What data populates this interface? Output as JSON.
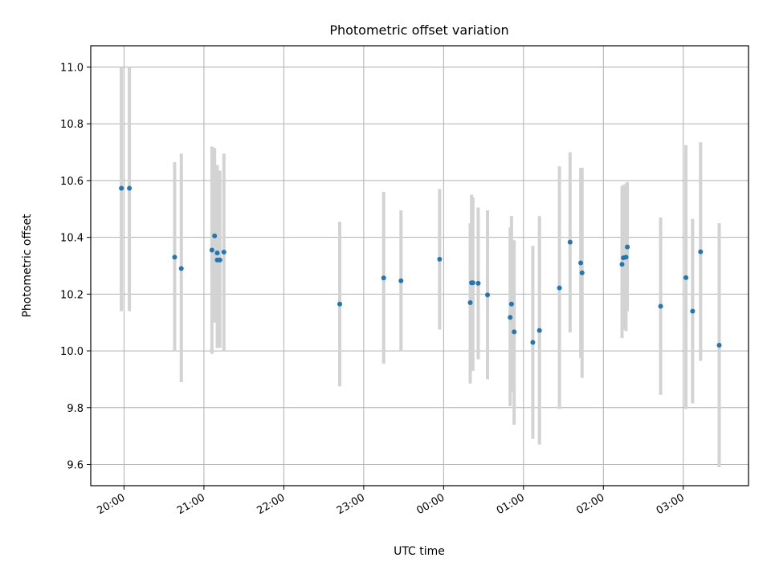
{
  "chart_data": {
    "type": "scatter",
    "title": "Photometric offset variation",
    "xlabel": "UTC time",
    "ylabel": "Photometric offset",
    "x_ticks": [
      "20:00",
      "21:00",
      "22:00",
      "23:00",
      "00:00",
      "01:00",
      "02:00",
      "03:00"
    ],
    "y_ticks": [
      "9.6",
      "9.8",
      "10.0",
      "10.2",
      "10.4",
      "10.6",
      "10.8",
      "11.0"
    ],
    "xlim": [
      "19:35",
      "03:49"
    ],
    "ylim": [
      9.525,
      11.075
    ],
    "grid": true,
    "point_color": "#1f77b4",
    "errorbar_color": "#d3d3d3",
    "points": [
      {
        "x": "19:58",
        "y": 10.573,
        "err_low": 10.14,
        "err_high": 11.0
      },
      {
        "x": "20:04",
        "y": 10.573,
        "err_low": 10.14,
        "err_high": 11.0
      },
      {
        "x": "20:38",
        "y": 10.33,
        "err_low": 10.0,
        "err_high": 10.665
      },
      {
        "x": "20:43",
        "y": 10.29,
        "err_low": 9.89,
        "err_high": 10.695
      },
      {
        "x": "21:06",
        "y": 10.355,
        "err_low": 9.99,
        "err_high": 10.72
      },
      {
        "x": "21:08",
        "y": 10.405,
        "err_low": 10.1,
        "err_high": 10.715
      },
      {
        "x": "21:10",
        "y": 10.345,
        "err_low": 10.03,
        "err_high": 10.655
      },
      {
        "x": "21:10",
        "y": 10.32,
        "err_low": 10.01,
        "err_high": 10.635
      },
      {
        "x": "21:12",
        "y": 10.32,
        "err_low": 10.01,
        "err_high": 10.635
      },
      {
        "x": "21:15",
        "y": 10.348,
        "err_low": 10.0,
        "err_high": 10.695
      },
      {
        "x": "22:42",
        "y": 10.165,
        "err_low": 9.875,
        "err_high": 10.455
      },
      {
        "x": "23:15",
        "y": 10.257,
        "err_low": 9.955,
        "err_high": 10.56
      },
      {
        "x": "23:28",
        "y": 10.247,
        "err_low": 10.0,
        "err_high": 10.495
      },
      {
        "x": "23:57",
        "y": 10.323,
        "err_low": 10.075,
        "err_high": 10.57
      },
      {
        "x": "00:20",
        "y": 10.17,
        "err_low": 9.885,
        "err_high": 10.45
      },
      {
        "x": "00:21",
        "y": 10.24,
        "err_low": 9.93,
        "err_high": 10.55
      },
      {
        "x": "00:22",
        "y": 10.24,
        "err_low": 9.93,
        "err_high": 10.54
      },
      {
        "x": "00:26",
        "y": 10.238,
        "err_low": 9.97,
        "err_high": 10.505
      },
      {
        "x": "00:33",
        "y": 10.197,
        "err_low": 9.9,
        "err_high": 10.495
      },
      {
        "x": "00:50",
        "y": 10.118,
        "err_low": 9.805,
        "err_high": 10.435
      },
      {
        "x": "00:51",
        "y": 10.165,
        "err_low": 9.855,
        "err_high": 10.475
      },
      {
        "x": "00:53",
        "y": 10.067,
        "err_low": 9.74,
        "err_high": 10.39
      },
      {
        "x": "01:07",
        "y": 10.03,
        "err_low": 9.69,
        "err_high": 10.37
      },
      {
        "x": "01:12",
        "y": 10.072,
        "err_low": 9.67,
        "err_high": 10.475
      },
      {
        "x": "01:27",
        "y": 10.222,
        "err_low": 9.795,
        "err_high": 10.65
      },
      {
        "x": "01:35",
        "y": 10.383,
        "err_low": 10.065,
        "err_high": 10.7
      },
      {
        "x": "01:43",
        "y": 10.31,
        "err_low": 9.975,
        "err_high": 10.645
      },
      {
        "x": "01:44",
        "y": 10.275,
        "err_low": 9.905,
        "err_high": 10.645
      },
      {
        "x": "02:14",
        "y": 10.305,
        "err_low": 10.045,
        "err_high": 10.58
      },
      {
        "x": "02:15",
        "y": 10.328,
        "err_low": 10.075,
        "err_high": 10.585
      },
      {
        "x": "02:17",
        "y": 10.33,
        "err_low": 10.07,
        "err_high": 10.59
      },
      {
        "x": "02:18",
        "y": 10.366,
        "err_low": 10.14,
        "err_high": 10.595
      },
      {
        "x": "02:43",
        "y": 10.157,
        "err_low": 9.845,
        "err_high": 10.47
      },
      {
        "x": "03:02",
        "y": 10.258,
        "err_low": 9.795,
        "err_high": 10.725
      },
      {
        "x": "03:07",
        "y": 10.14,
        "err_low": 9.815,
        "err_high": 10.465
      },
      {
        "x": "03:13",
        "y": 10.349,
        "err_low": 9.965,
        "err_high": 10.735
      },
      {
        "x": "03:27",
        "y": 10.02,
        "err_low": 9.59,
        "err_high": 10.45
      }
    ]
  }
}
